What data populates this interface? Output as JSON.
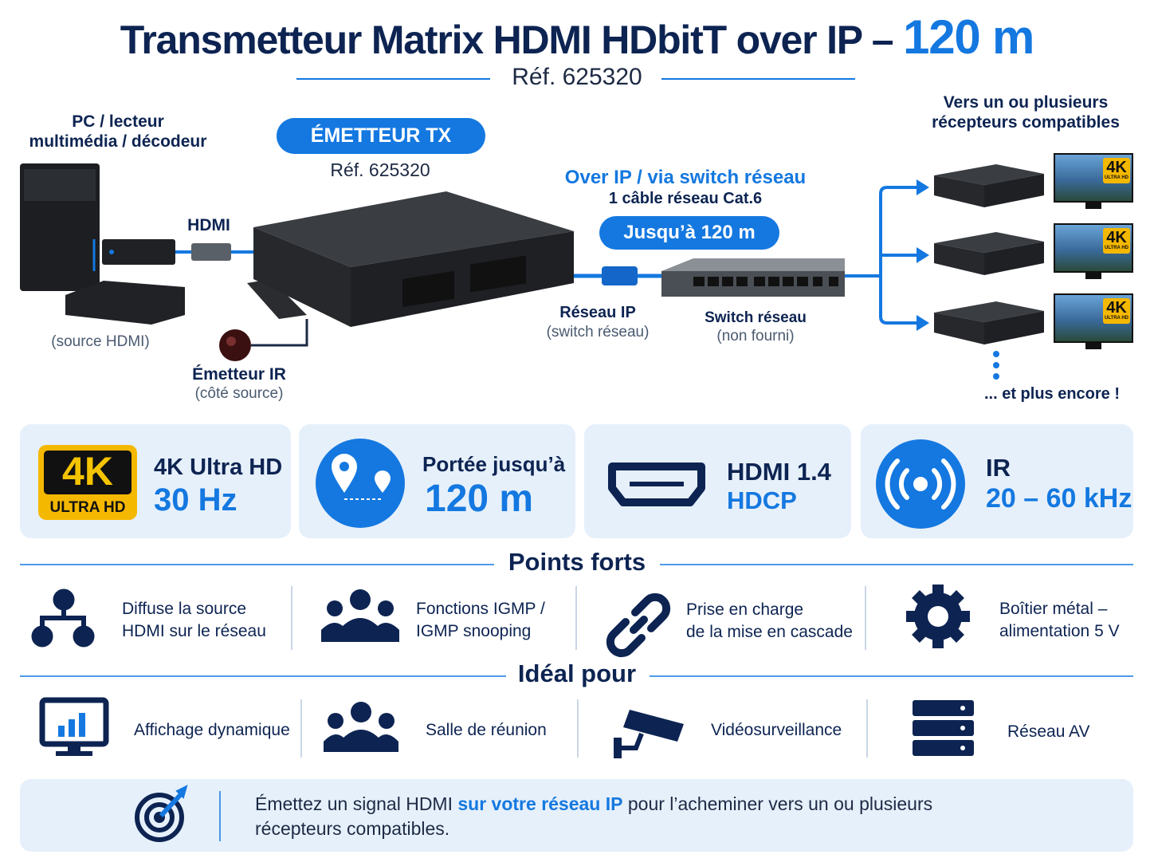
{
  "header": {
    "title": "Transmetteur Matrix HDMI HDbitT over IP –",
    "title_highlight": "120 m",
    "ref": "Réf. 625320"
  },
  "diagram": {
    "source": {
      "lines": [
        "PC / lecteur",
        "multimédia / décodeur"
      ],
      "note": "(source HDMI)"
    },
    "hdmi_label": "HDMI",
    "transmitter": {
      "badge": "ÉMETTEUR TX",
      "ref": "Réf. 625320"
    },
    "ir": {
      "label": "Émetteur IR",
      "note": "(côté source)"
    },
    "link": {
      "title": "Over IP / via switch réseau",
      "cable": "1 câble réseau Cat.6",
      "range": "Jusqu’à 120 m"
    },
    "network": {
      "label": "Réseau IP",
      "note": "(switch réseau)"
    },
    "switch": {
      "label": "Switch réseau",
      "note": "(non fourni)"
    },
    "receivers": {
      "lines": [
        "Vers un ou plusieurs",
        "récepteurs compatibles"
      ],
      "more": "... et plus encore !",
      "badge": "4K",
      "badge_sub": "ULTRA HD"
    }
  },
  "specs": [
    {
      "badge": "4K",
      "badge_sub": "ULTRA HD",
      "line1": "4K Ultra HD",
      "line2": "30 Hz"
    },
    {
      "line1": "Portée jusqu’à",
      "line2": "120 m"
    },
    {
      "line1": "HDMI 1.4",
      "line2": "HDCP"
    },
    {
      "line1": "IR",
      "line2": "20 – 60 kHz"
    }
  ],
  "highlights": {
    "title": "Points forts",
    "items": [
      [
        "Diffuse la source",
        "HDMI sur le réseau"
      ],
      [
        "Fonctions IGMP /",
        "IGMP snooping"
      ],
      [
        "Prise en charge",
        "de la mise en cascade"
      ],
      [
        "Boîtier métal –",
        "alimentation 5 V"
      ]
    ]
  },
  "ideal": {
    "title": "Idéal pour",
    "items": [
      "Affichage dynamique",
      "Salle de réunion",
      "Vidéosurveillance",
      "Réseau AV"
    ]
  },
  "footer": {
    "before": "Émettez un signal HDMI ",
    "highlight": "sur votre réseau IP",
    "after": " pour l’acheminer vers un ou plusieurs",
    "line2": "récepteurs compatibles."
  }
}
